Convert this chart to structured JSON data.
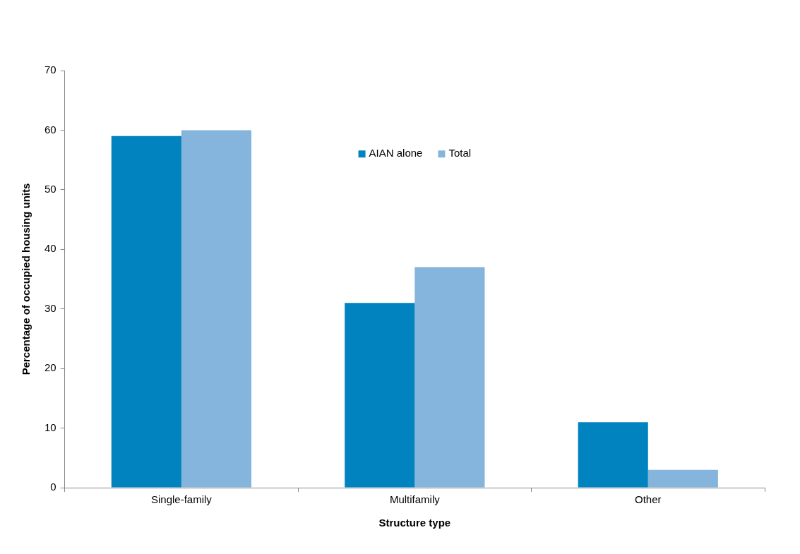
{
  "chart_data": {
    "type": "bar",
    "xlabel": "Structure type",
    "ylabel": "Percentage of occupied housing units",
    "categories": [
      "Single-family",
      "Multifamily",
      "Other"
    ],
    "series": [
      {
        "name": "AIAN alone",
        "color": "#0083bf",
        "values": [
          59,
          31,
          11
        ]
      },
      {
        "name": "Total",
        "color": "#85b5dc",
        "values": [
          60,
          37,
          3
        ]
      }
    ],
    "ylim": [
      0,
      70
    ],
    "yticks": [
      0,
      10,
      20,
      30,
      40,
      50,
      60,
      70
    ],
    "grid": false,
    "legend": "top"
  }
}
